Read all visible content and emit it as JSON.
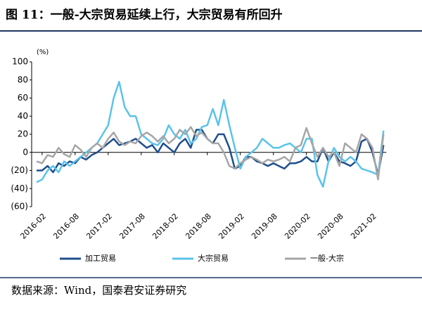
{
  "chart_data": {
    "type": "line",
    "title": "图 11：一般-大宗贸易延续上行，大宗贸易有所回升",
    "unit": "(%)",
    "source": "数据来源：Wind，国泰君安证券研究",
    "categories": [
      null,
      "2016-02",
      null,
      null,
      null,
      null,
      null,
      "2016-08",
      null,
      null,
      null,
      null,
      null,
      "2017-02",
      null,
      null,
      null,
      null,
      null,
      "2017-08",
      null,
      null,
      null,
      null,
      null,
      "2018-02",
      null,
      null,
      null,
      null,
      null,
      "2018-08",
      null,
      null,
      null,
      null,
      null,
      "2019-02",
      null,
      null,
      null,
      null,
      null,
      "2019-08",
      null,
      null,
      null,
      null,
      null,
      "2020-02",
      null,
      null,
      null,
      null,
      null,
      "2020-08",
      null,
      null,
      null,
      null,
      null,
      "2021-02",
      null,
      null
    ],
    "series": [
      {
        "name": "加工贸易",
        "color": "#1f4e8c",
        "values": [
          -20,
          -20,
          -15,
          -22,
          -12,
          -15,
          -10,
          -12,
          -5,
          -8,
          -3,
          0,
          5,
          10,
          15,
          8,
          10,
          12,
          15,
          10,
          5,
          8,
          0,
          10,
          5,
          0,
          10,
          15,
          5,
          25,
          25,
          15,
          10,
          20,
          20,
          5,
          -18,
          -15,
          -5,
          -5,
          -10,
          -12,
          -15,
          -12,
          -15,
          -18,
          -12,
          -12,
          -10,
          -5,
          -10,
          -10,
          5,
          -10,
          0,
          -10,
          -12,
          -15,
          -10,
          12,
          15,
          0,
          -25,
          8
        ]
      },
      {
        "name": "大宗贸易",
        "color": "#5bc3ea",
        "values": [
          -33,
          -30,
          -20,
          -15,
          -22,
          -10,
          -15,
          -10,
          -5,
          0,
          5,
          10,
          20,
          30,
          60,
          78,
          50,
          40,
          40,
          20,
          15,
          10,
          8,
          15,
          30,
          20,
          15,
          25,
          10,
          15,
          28,
          30,
          48,
          30,
          58,
          30,
          5,
          -18,
          -5,
          0,
          5,
          15,
          10,
          5,
          5,
          8,
          10,
          5,
          0,
          15,
          15,
          -25,
          -38,
          -10,
          5,
          -5,
          -10,
          -5,
          -10,
          -18,
          -20,
          -22,
          -25,
          24
        ]
      },
      {
        "name": "一般-大宗",
        "color": "#a6a6a6",
        "values": [
          -10,
          -12,
          -3,
          -5,
          5,
          -2,
          -5,
          8,
          3,
          -5,
          5,
          10,
          5,
          15,
          22,
          12,
          8,
          12,
          10,
          18,
          22,
          18,
          12,
          18,
          10,
          15,
          25,
          20,
          28,
          18,
          22,
          15,
          10,
          10,
          0,
          -15,
          -18,
          -12,
          -8,
          -5,
          -8,
          -12,
          -8,
          -10,
          -8,
          -5,
          -10,
          5,
          8,
          27,
          10,
          -5,
          5,
          -5,
          0,
          -15,
          10,
          5,
          0,
          20,
          15,
          5,
          -30,
          20
        ]
      }
    ],
    "ylim": [
      -60,
      100
    ],
    "yticks": [
      100,
      80,
      60,
      40,
      20,
      0,
      {
        "value": -20,
        "label": "(20)"
      },
      {
        "value": -40,
        "label": "(40)"
      },
      {
        "value": -60,
        "label": "(60)"
      }
    ],
    "negative_tick_color": "#e00000"
  }
}
